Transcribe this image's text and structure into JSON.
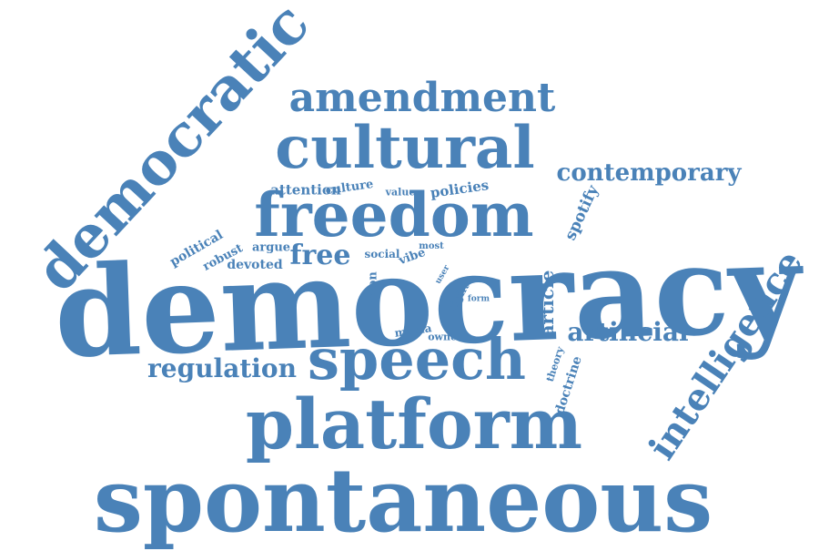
{
  "color": "#4A82B8",
  "words": [
    {
      "text": "democracy"
    },
    {
      "text": "spontaneous"
    },
    {
      "text": "platform"
    },
    {
      "text": "freedom"
    },
    {
      "text": "cultural"
    },
    {
      "text": "speech"
    },
    {
      "text": "democratic"
    },
    {
      "text": "amendment"
    },
    {
      "text": "intelligence"
    },
    {
      "text": "contemporary"
    },
    {
      "text": "artificial"
    },
    {
      "text": "regulation"
    },
    {
      "text": "free"
    },
    {
      "text": "article"
    },
    {
      "text": "spotify"
    },
    {
      "text": "attention"
    },
    {
      "text": "culture"
    },
    {
      "text": "value"
    },
    {
      "text": "policies"
    },
    {
      "text": "political"
    },
    {
      "text": "argue"
    },
    {
      "text": "robust"
    },
    {
      "text": "devoted"
    },
    {
      "text": "social"
    },
    {
      "text": "most"
    },
    {
      "text": "vibe"
    },
    {
      "text": "user"
    },
    {
      "text": "person"
    },
    {
      "text": "right"
    },
    {
      "text": "form"
    },
    {
      "text": "media"
    },
    {
      "text": "owner"
    },
    {
      "text": "theory"
    },
    {
      "text": "doctrine"
    }
  ]
}
